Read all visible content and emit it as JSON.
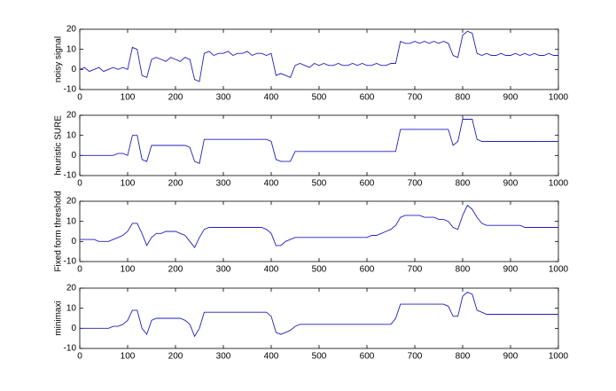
{
  "chart_data": [
    {
      "type": "line",
      "ylabel": "noisy signal",
      "color": "#1f1fbf",
      "x": [
        0,
        10,
        20,
        30,
        40,
        50,
        60,
        70,
        80,
        90,
        100,
        110,
        120,
        130,
        140,
        150,
        160,
        170,
        180,
        190,
        200,
        210,
        220,
        230,
        240,
        250,
        260,
        270,
        280,
        290,
        300,
        310,
        320,
        330,
        340,
        350,
        360,
        370,
        380,
        390,
        400,
        410,
        420,
        430,
        440,
        450,
        460,
        470,
        480,
        490,
        500,
        510,
        520,
        530,
        540,
        550,
        560,
        570,
        580,
        590,
        600,
        610,
        620,
        630,
        640,
        650,
        660,
        670,
        680,
        690,
        700,
        710,
        720,
        730,
        740,
        750,
        760,
        770,
        780,
        790,
        800,
        810,
        820,
        830,
        840,
        850,
        860,
        870,
        880,
        890,
        900,
        910,
        920,
        930,
        940,
        950,
        960,
        970,
        980,
        990,
        1000
      ],
      "values": [
        0,
        1,
        -1,
        0,
        1,
        -1,
        0,
        1,
        0,
        1,
        0,
        11,
        10,
        -3,
        -4,
        5,
        6,
        5,
        4,
        6,
        5,
        4,
        6,
        5,
        -5,
        -6,
        8,
        9,
        7,
        8,
        8,
        9,
        7,
        8,
        8,
        9,
        7,
        8,
        8,
        7,
        8,
        -3,
        -2,
        -3,
        -4,
        2,
        3,
        2,
        1,
        3,
        2,
        3,
        2,
        2,
        3,
        2,
        2,
        3,
        2,
        3,
        2,
        2,
        3,
        2,
        2,
        3,
        3,
        14,
        13,
        13,
        14,
        13,
        14,
        13,
        14,
        13,
        14,
        13,
        7,
        6,
        17,
        19,
        18,
        8,
        7,
        8,
        7,
        7,
        8,
        7,
        7,
        8,
        7,
        8,
        7,
        8,
        7,
        7,
        8,
        7,
        7
      ],
      "xlim": [
        0,
        1000
      ],
      "ylim": [
        -10,
        20
      ],
      "xticks": [
        0,
        100,
        200,
        300,
        400,
        500,
        600,
        700,
        800,
        900,
        1000
      ],
      "yticks": [
        -10,
        0,
        10,
        20
      ]
    },
    {
      "type": "line",
      "ylabel": "heuristic SURE",
      "color": "#1f1fbf",
      "x": [
        0,
        10,
        20,
        30,
        40,
        50,
        60,
        70,
        80,
        90,
        100,
        110,
        120,
        130,
        140,
        150,
        160,
        170,
        180,
        190,
        200,
        210,
        220,
        230,
        240,
        250,
        260,
        270,
        280,
        290,
        300,
        310,
        320,
        330,
        340,
        350,
        360,
        370,
        380,
        390,
        400,
        410,
        420,
        430,
        440,
        450,
        460,
        470,
        480,
        490,
        500,
        510,
        520,
        530,
        540,
        550,
        560,
        570,
        580,
        590,
        600,
        610,
        620,
        630,
        640,
        650,
        660,
        670,
        680,
        690,
        700,
        710,
        720,
        730,
        740,
        750,
        760,
        770,
        780,
        790,
        800,
        810,
        820,
        830,
        840,
        850,
        860,
        870,
        880,
        890,
        900,
        910,
        920,
        930,
        940,
        950,
        960,
        970,
        980,
        990,
        1000
      ],
      "values": [
        0,
        0,
        0,
        0,
        0,
        0,
        0,
        0,
        1,
        1,
        0,
        10,
        10,
        -2,
        -3,
        5,
        5,
        5,
        5,
        5,
        5,
        5,
        5,
        4,
        -3,
        -4,
        8,
        8,
        8,
        8,
        8,
        8,
        8,
        8,
        8,
        8,
        8,
        8,
        8,
        8,
        7,
        -2,
        -3,
        -3,
        -3,
        2,
        2,
        2,
        2,
        2,
        2,
        2,
        2,
        2,
        2,
        2,
        2,
        2,
        2,
        2,
        2,
        2,
        2,
        2,
        2,
        2,
        2,
        13,
        13,
        13,
        13,
        13,
        13,
        13,
        13,
        13,
        13,
        13,
        5,
        7,
        18,
        18,
        18,
        8,
        7,
        7,
        7,
        7,
        7,
        7,
        7,
        7,
        7,
        7,
        7,
        7,
        7,
        7,
        7,
        7,
        7
      ],
      "xlim": [
        0,
        1000
      ],
      "ylim": [
        -10,
        20
      ],
      "xticks": [
        0,
        100,
        200,
        300,
        400,
        500,
        600,
        700,
        800,
        900,
        1000
      ],
      "yticks": [
        -10,
        0,
        10,
        20
      ]
    },
    {
      "type": "line",
      "ylabel": "Fixed form threshold",
      "color": "#1f1fbf",
      "x": [
        0,
        10,
        20,
        30,
        40,
        50,
        60,
        70,
        80,
        90,
        100,
        110,
        120,
        130,
        140,
        150,
        160,
        170,
        180,
        190,
        200,
        210,
        220,
        230,
        240,
        250,
        260,
        270,
        280,
        290,
        300,
        310,
        320,
        330,
        340,
        350,
        360,
        370,
        380,
        390,
        400,
        410,
        420,
        430,
        440,
        450,
        460,
        470,
        480,
        490,
        500,
        510,
        520,
        530,
        540,
        550,
        560,
        570,
        580,
        590,
        600,
        610,
        620,
        630,
        640,
        650,
        660,
        670,
        680,
        690,
        700,
        710,
        720,
        730,
        740,
        750,
        760,
        770,
        780,
        790,
        800,
        810,
        820,
        830,
        840,
        850,
        860,
        870,
        880,
        890,
        900,
        910,
        920,
        930,
        940,
        950,
        960,
        970,
        980,
        990,
        1000
      ],
      "values": [
        1,
        1,
        1,
        1,
        0,
        0,
        0,
        1,
        2,
        3,
        5,
        9,
        9,
        4,
        -2,
        2,
        4,
        4,
        5,
        5,
        5,
        4,
        3,
        0,
        -3,
        2,
        6,
        7,
        7,
        7,
        7,
        7,
        7,
        7,
        7,
        7,
        7,
        7,
        7,
        6,
        4,
        -2,
        -2,
        0,
        1,
        2,
        2,
        2,
        2,
        2,
        2,
        2,
        2,
        2,
        2,
        2,
        2,
        2,
        2,
        2,
        2,
        3,
        3,
        4,
        5,
        6,
        8,
        12,
        13,
        13,
        13,
        13,
        12,
        12,
        12,
        11,
        11,
        10,
        7,
        6,
        13,
        18,
        16,
        12,
        9,
        8,
        8,
        8,
        8,
        8,
        8,
        8,
        8,
        7,
        7,
        7,
        7,
        7,
        7,
        7,
        7
      ],
      "xlim": [
        0,
        1000
      ],
      "ylim": [
        -10,
        20
      ],
      "xticks": [
        0,
        100,
        200,
        300,
        400,
        500,
        600,
        700,
        800,
        900,
        1000
      ],
      "yticks": [
        -10,
        0,
        10,
        20
      ]
    },
    {
      "type": "line",
      "ylabel": "minimaxi",
      "color": "#1f1fbf",
      "x": [
        0,
        10,
        20,
        30,
        40,
        50,
        60,
        70,
        80,
        90,
        100,
        110,
        120,
        130,
        140,
        150,
        160,
        170,
        180,
        190,
        200,
        210,
        220,
        230,
        240,
        250,
        260,
        270,
        280,
        290,
        300,
        310,
        320,
        330,
        340,
        350,
        360,
        370,
        380,
        390,
        400,
        410,
        420,
        430,
        440,
        450,
        460,
        470,
        480,
        490,
        500,
        510,
        520,
        530,
        540,
        550,
        560,
        570,
        580,
        590,
        600,
        610,
        620,
        630,
        640,
        650,
        660,
        670,
        680,
        690,
        700,
        710,
        720,
        730,
        740,
        750,
        760,
        770,
        780,
        790,
        800,
        810,
        820,
        830,
        840,
        850,
        860,
        870,
        880,
        890,
        900,
        910,
        920,
        930,
        940,
        950,
        960,
        970,
        980,
        990,
        1000
      ],
      "values": [
        0,
        0,
        0,
        0,
        0,
        0,
        0,
        1,
        1,
        2,
        4,
        9,
        9,
        0,
        -3,
        4,
        5,
        5,
        5,
        5,
        5,
        5,
        4,
        2,
        -4,
        0,
        8,
        8,
        8,
        8,
        8,
        8,
        8,
        8,
        8,
        8,
        8,
        8,
        8,
        8,
        6,
        -2,
        -3,
        -2,
        -1,
        1,
        2,
        2,
        2,
        2,
        2,
        2,
        2,
        2,
        2,
        2,
        2,
        2,
        2,
        2,
        2,
        2,
        2,
        2,
        2,
        2,
        5,
        12,
        12,
        12,
        12,
        12,
        12,
        12,
        12,
        12,
        12,
        11,
        6,
        6,
        16,
        18,
        17,
        9,
        8,
        7,
        7,
        7,
        7,
        7,
        7,
        7,
        7,
        7,
        7,
        7,
        7,
        7,
        7,
        7,
        7
      ],
      "xlim": [
        0,
        1000
      ],
      "ylim": [
        -10,
        20
      ],
      "xticks": [
        0,
        100,
        200,
        300,
        400,
        500,
        600,
        700,
        800,
        900,
        1000
      ],
      "yticks": [
        -10,
        0,
        10,
        20
      ]
    }
  ]
}
